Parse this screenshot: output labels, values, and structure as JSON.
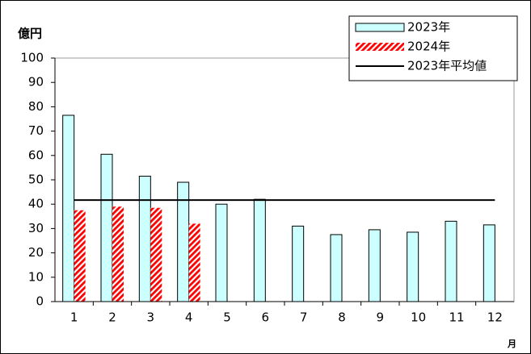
{
  "chart_data": {
    "type": "bar",
    "y_label": "億円",
    "x_label": "月",
    "categories": [
      "1",
      "2",
      "3",
      "4",
      "5",
      "6",
      "7",
      "8",
      "9",
      "10",
      "11",
      "12"
    ],
    "series": [
      {
        "name": "2023年",
        "color": "#ccffff",
        "values": [
          76.5,
          60.5,
          51.5,
          49,
          40,
          42,
          31,
          27.5,
          29.5,
          28.5,
          33,
          31.5
        ]
      },
      {
        "name": "2024年",
        "color": "#ff0000",
        "hatch": true,
        "values": [
          37.5,
          39,
          38.5,
          32,
          null,
          null,
          null,
          null,
          null,
          null,
          null,
          null
        ]
      }
    ],
    "average_line": {
      "name": "2023年平均値",
      "color": "#000000",
      "value": 41.7
    },
    "ylim": [
      0,
      100
    ],
    "yticks": [
      0,
      10,
      20,
      30,
      40,
      50,
      60,
      70,
      80,
      90,
      100
    ],
    "legend": "top-right"
  }
}
